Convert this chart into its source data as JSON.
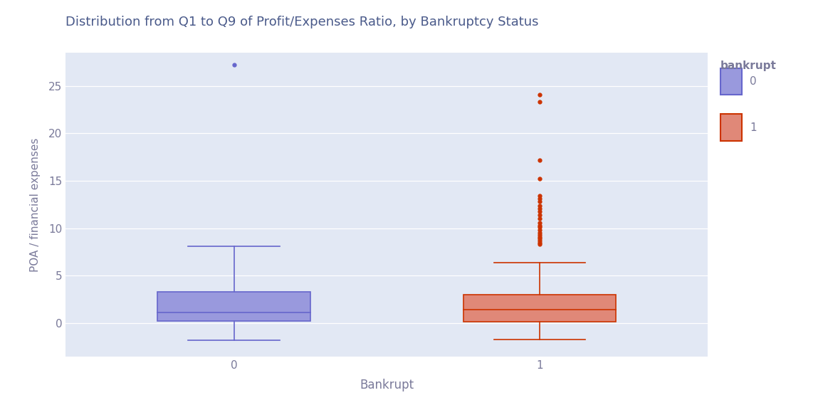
{
  "title": "Distribution from Q1 to Q9 of Profit/Expenses Ratio, by Bankruptcy Status",
  "xlabel": "Bankrupt",
  "ylabel": "POA / financial expenses",
  "title_color": "#4a5a8a",
  "title_fontsize": 13,
  "plot_bg_color": "#e2e8f4",
  "figure_background": "#ffffff",
  "group0": {
    "label": "0",
    "color": "#6666cc",
    "face_color": "#9999dd",
    "whisker_lo": -1.8,
    "whisker_hi": 8.1,
    "q1": 0.2,
    "median": 1.1,
    "q3": 3.3,
    "flier_hi": [
      27.2
    ],
    "flier_lo": []
  },
  "group1": {
    "label": "1",
    "color": "#cc3300",
    "face_color": "#e08878",
    "whisker_lo": -1.7,
    "whisker_hi": 6.4,
    "q1": 0.15,
    "median": 1.4,
    "q3": 3.0,
    "flier_hi": [
      24.1,
      23.3,
      17.2,
      15.2,
      13.4,
      13.1,
      12.8,
      12.4,
      12.1,
      11.8,
      11.4,
      11.0,
      10.6,
      10.3,
      10.1,
      9.8,
      9.5,
      9.3,
      9.1,
      8.9,
      8.7,
      8.5,
      8.3
    ],
    "flier_lo": []
  },
  "ylim": [
    -3.5,
    28.5
  ],
  "yticks": [
    0,
    5,
    10,
    15,
    20,
    25
  ],
  "xtick_positions": [
    0,
    1
  ],
  "xtick_labels": [
    "0",
    "1"
  ],
  "box_width": 0.5,
  "legend_title": "bankrupt",
  "legend_labels": [
    "0",
    "1"
  ],
  "legend_colors": [
    "#6666cc",
    "#cc3300"
  ],
  "legend_face_colors": [
    "#9999dd",
    "#e08878"
  ],
  "grid_color": "#ffffff",
  "tick_label_color": "#7a7a9a",
  "axis_label_color": "#7a7a9a"
}
